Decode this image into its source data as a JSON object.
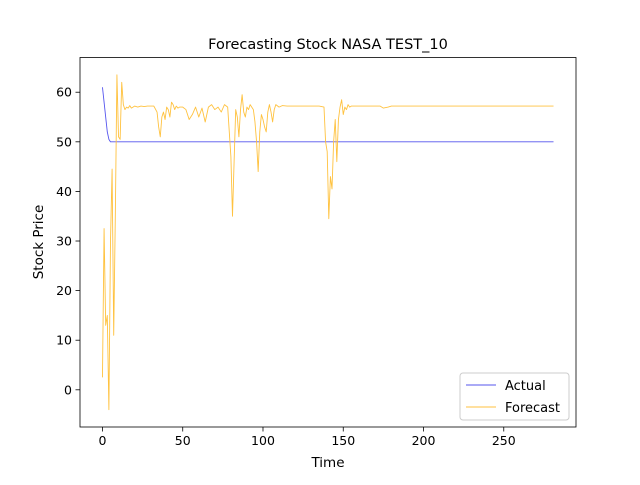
{
  "chart_data": {
    "type": "line",
    "title": "Forecasting Stock NASA TEST_10",
    "xlabel": "Time",
    "ylabel": "Stock Price",
    "xlim": [
      -14,
      295
    ],
    "ylim": [
      -7.5,
      67
    ],
    "xticks": [
      0,
      50,
      100,
      150,
      200,
      250
    ],
    "yticks": [
      0,
      10,
      20,
      30,
      40,
      50,
      60
    ],
    "grid": false,
    "legend": "lower right",
    "series": [
      {
        "name": "Actual",
        "color": "#5555ee",
        "x": [
          0,
          1,
          2,
          3,
          4,
          5,
          6,
          8,
          10,
          20,
          50,
          100,
          150,
          200,
          250,
          281
        ],
        "y": [
          61.0,
          58.0,
          55.0,
          52.0,
          50.5,
          50.0,
          50.0,
          50.0,
          50.0,
          50.0,
          50.0,
          50.0,
          50.0,
          50.0,
          50.0,
          50.0
        ]
      },
      {
        "name": "Forecast",
        "color": "#ffc23f",
        "x": [
          0,
          1,
          2,
          3,
          4,
          5,
          6,
          7,
          8,
          9,
          10,
          11,
          12,
          13,
          14,
          15,
          16,
          17,
          18,
          20,
          22,
          24,
          26,
          28,
          30,
          32,
          34,
          35,
          36,
          37,
          38,
          39,
          40,
          41,
          42,
          43,
          44,
          45,
          46,
          47,
          48,
          50,
          52,
          54,
          56,
          58,
          60,
          62,
          64,
          66,
          68,
          70,
          72,
          74,
          76,
          78,
          79,
          80,
          81,
          82,
          83,
          84,
          85,
          86,
          87,
          88,
          89,
          90,
          91,
          92,
          94,
          95,
          96,
          97,
          98,
          99,
          100,
          101,
          102,
          103,
          104,
          105,
          106,
          107,
          108,
          110,
          112,
          115,
          120,
          125,
          130,
          135,
          138,
          139,
          140,
          141,
          142,
          143,
          144,
          145,
          146,
          147,
          148,
          149,
          150,
          151,
          152,
          153,
          154,
          155,
          160,
          165,
          170,
          173,
          175,
          178,
          180,
          185,
          190,
          200,
          220,
          240,
          260,
          281
        ],
        "y": [
          2.5,
          32.5,
          13.0,
          15.0,
          -4.0,
          30.0,
          44.5,
          11.0,
          35.0,
          63.5,
          51.0,
          50.5,
          62.0,
          57.5,
          56.5,
          57.0,
          56.8,
          57.3,
          56.8,
          57.2,
          57.0,
          57.2,
          57.1,
          57.2,
          57.2,
          57.2,
          56.0,
          53.0,
          51.0,
          55.0,
          56.0,
          54.5,
          57.0,
          56.5,
          55.0,
          58.0,
          57.5,
          56.5,
          57.2,
          56.8,
          57.0,
          57.0,
          56.5,
          54.5,
          55.5,
          57.0,
          55.0,
          56.8,
          54.0,
          57.0,
          57.5,
          56.5,
          57.0,
          56.0,
          57.5,
          57.0,
          52.0,
          47.0,
          35.0,
          46.0,
          56.5,
          55.0,
          51.0,
          56.5,
          59.5,
          56.0,
          55.0,
          57.0,
          56.5,
          57.5,
          56.5,
          54.0,
          50.0,
          44.0,
          52.0,
          55.5,
          54.5,
          53.0,
          52.0,
          56.0,
          57.5,
          56.0,
          54.0,
          56.5,
          57.5,
          57.0,
          57.3,
          57.2,
          57.2,
          57.2,
          57.2,
          57.2,
          57.0,
          50.0,
          48.0,
          34.5,
          43.0,
          40.5,
          50.0,
          54.5,
          46.0,
          54.5,
          57.0,
          58.5,
          55.5,
          57.0,
          56.5,
          57.5,
          57.0,
          57.2,
          57.2,
          57.2,
          57.2,
          57.2,
          56.8,
          57.0,
          57.2,
          57.2,
          57.2,
          57.2,
          57.2,
          57.2,
          57.2,
          57.2
        ]
      }
    ]
  }
}
